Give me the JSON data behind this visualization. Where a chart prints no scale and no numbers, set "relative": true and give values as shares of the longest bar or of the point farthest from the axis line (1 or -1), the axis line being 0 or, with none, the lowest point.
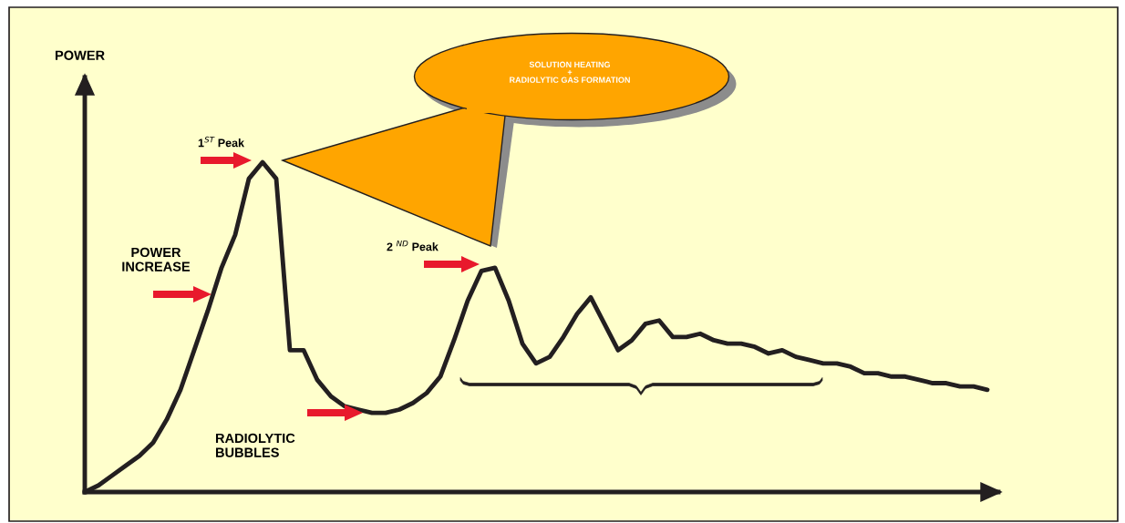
{
  "chart_data": {
    "type": "line",
    "relative": true,
    "color": "#231f20",
    "marker": "none",
    "line_style": "solid",
    "grid": false,
    "legend": false,
    "categories": [
      null,
      null,
      null,
      null,
      null,
      null,
      null,
      null,
      null,
      null,
      null,
      null,
      null,
      null,
      null,
      null,
      null,
      null,
      null,
      null,
      null,
      null,
      null,
      null,
      null,
      null,
      null,
      null,
      null,
      null,
      null,
      null,
      null,
      null,
      null,
      null,
      null,
      null,
      null,
      null,
      null,
      null,
      null,
      null,
      null,
      null,
      null,
      null,
      null,
      null,
      null,
      null,
      null,
      null,
      null,
      null,
      null,
      null,
      null,
      null,
      null,
      null,
      null,
      null,
      null,
      null,
      null
    ],
    "values": [
      0,
      0.02,
      0.05,
      0.08,
      0.11,
      0.15,
      0.22,
      0.31,
      0.43,
      0.55,
      0.68,
      0.78,
      0.95,
      1,
      0.95,
      0.43,
      0.43,
      0.34,
      0.29,
      0.26,
      0.25,
      0.24,
      0.24,
      0.25,
      0.27,
      0.3,
      0.35,
      0.46,
      0.58,
      0.67,
      0.68,
      0.58,
      0.45,
      0.39,
      0.41,
      0.47,
      0.54,
      0.59,
      0.51,
      0.43,
      0.46,
      0.51,
      0.52,
      0.47,
      0.47,
      0.48,
      0.46,
      0.45,
      0.45,
      0.44,
      0.42,
      0.43,
      0.41,
      0.4,
      0.39,
      0.39,
      0.38,
      0.36,
      0.36,
      0.35,
      0.35,
      0.34,
      0.33,
      0.33,
      0.32,
      0.32,
      0.31
    ],
    "annotations": [
      "SOLUTION HEATING\n+\nRADIOLYTIC GAS FORMATION",
      "1$^{ST}$ Peak",
      "2 $^{ND}$ Peak",
      "POWER\nINCREASE",
      "RADIOLYTIC\nBUBBLES",
      "POWER"
    ]
  }
}
